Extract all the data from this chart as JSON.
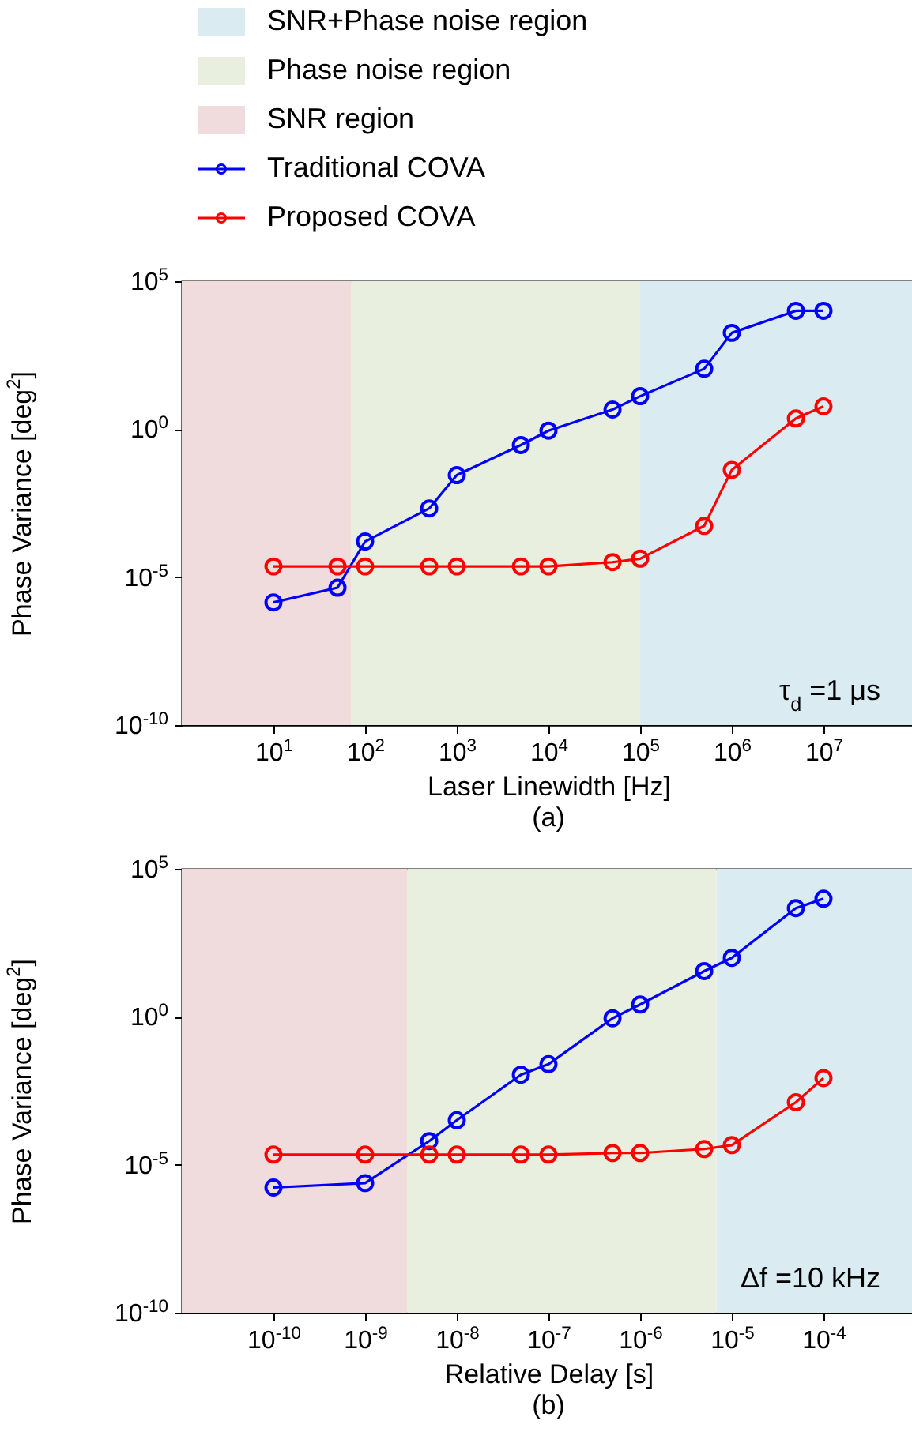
{
  "chart_data": [
    {
      "type": "line",
      "title": "(a)",
      "xlabel": "Laser Linewidth [Hz]",
      "ylabel": "Phase Variance [deg$^{2}$]",
      "x": [
        10,
        50,
        100,
        500,
        1000,
        5000,
        10000,
        50000,
        100000,
        500000,
        1000000,
        5000000,
        10000000
      ],
      "series": [
        {
          "name": "Traditional COVA",
          "color": "#0000ff",
          "values": [
            1.4e-06,
            4.4e-06,
            0.00016,
            0.0021,
            0.028,
            0.29,
            0.89,
            4.6,
            13,
            110,
            1800,
            10000,
            10000
          ]
        },
        {
          "name": "Proposed COVA",
          "color": "#ff0000",
          "values": [
            2.3e-05,
            2.3e-05,
            2.3e-05,
            2.3e-05,
            2.3e-05,
            2.3e-05,
            2.3e-05,
            3.2e-05,
            4.2e-05,
            0.00054,
            0.042,
            2.3,
            5.9
          ]
        }
      ],
      "xlim": [
        1,
        100000000
      ],
      "ylim": [
        1e-10,
        100000
      ],
      "xticks": [
        {
          "value": 10,
          "label": "10$^{1}$"
        },
        {
          "value": 100,
          "label": "10$^{2}$"
        },
        {
          "value": 1000,
          "label": "10$^{3}$"
        },
        {
          "value": 10000,
          "label": "10$^{4}$"
        },
        {
          "value": 100000,
          "label": "10$^{5}$"
        },
        {
          "value": 1000000,
          "label": "10$^{6}$"
        },
        {
          "value": 10000000,
          "label": "10$^{7}$"
        }
      ],
      "yticks": [
        {
          "value": 1e-10,
          "label": "10$^{-10}$"
        },
        {
          "value": 1e-05,
          "label": "10$^{-5}$"
        },
        {
          "value": 1,
          "label": "10$^{0}$"
        },
        {
          "value": 100000,
          "label": "10$^{5}$"
        }
      ],
      "log": "xy",
      "marker": "circle",
      "legend": "top",
      "bands": [
        {
          "axis": "x",
          "from": 100000,
          "to": 100000000,
          "label": "SNR+Phase noise region",
          "color": "#daecf2"
        },
        {
          "axis": "x",
          "from": 70,
          "to": 100000,
          "label": "Phase noise region",
          "color": "#e9efdf"
        },
        {
          "axis": "x",
          "from": 1,
          "to": 70,
          "label": "SNR region",
          "color": "#f0dcdc"
        }
      ],
      "annotations": [
        "τ$_{d}$ =1 μs"
      ]
    },
    {
      "type": "line",
      "title": "(b)",
      "xlabel": "Relative Delay [s]",
      "ylabel": "Phase Variance [deg$^{2}$]",
      "x": [
        1e-10,
        1e-09,
        5e-09,
        1e-08,
        5e-08,
        1e-07,
        5e-07,
        1e-06,
        5e-06,
        1e-05,
        5e-05,
        0.0001
      ],
      "series": [
        {
          "color": "#0000ff",
          "values": [
            1.7e-06,
            2.4e-06,
            6.3e-05,
            0.00032,
            0.011,
            0.025,
            0.89,
            2.6,
            35,
            98,
            4700,
            9800
          ]
        },
        {
          "color": "#ff0000",
          "values": [
            2.2e-05,
            2.2e-05,
            2.2e-05,
            2.2e-05,
            2.2e-05,
            2.2e-05,
            2.5e-05,
            2.5e-05,
            3.4e-05,
            4.6e-05,
            0.0013,
            0.0085
          ]
        }
      ],
      "xlim": [
        1e-11,
        0.001
      ],
      "ylim": [
        1e-10,
        100000
      ],
      "xticks": [
        {
          "value": 1e-10,
          "label": "10$^{-10}$"
        },
        {
          "value": 1e-09,
          "label": "10$^{-9}$"
        },
        {
          "value": 1e-08,
          "label": "10$^{-8}$"
        },
        {
          "value": 1e-07,
          "label": "10$^{-7}$"
        },
        {
          "value": 1e-06,
          "label": "10$^{-6}$"
        },
        {
          "value": 1e-05,
          "label": "10$^{-5}$"
        },
        {
          "value": 0.0001,
          "label": "10$^{-4}$"
        }
      ],
      "yticks": [
        {
          "value": 1e-10,
          "label": "10$^{-10}$"
        },
        {
          "value": 1e-05,
          "label": "10$^{-5}$"
        },
        {
          "value": 1,
          "label": "10$^{0}$"
        },
        {
          "value": 100000,
          "label": "10$^{5}$"
        }
      ],
      "log": "xy",
      "marker": "circle",
      "bands": [
        {
          "axis": "x",
          "from": 6.8e-06,
          "to": 0.001,
          "color": "#daecf2"
        },
        {
          "axis": "x",
          "from": 2.9e-09,
          "to": 6.8e-06,
          "color": "#e9efdf"
        },
        {
          "axis": "x",
          "from": 1e-11,
          "to": 2.9e-09,
          "color": "#f0dcdc"
        }
      ],
      "annotations": [
        "Δf =10 kHz"
      ]
    }
  ]
}
